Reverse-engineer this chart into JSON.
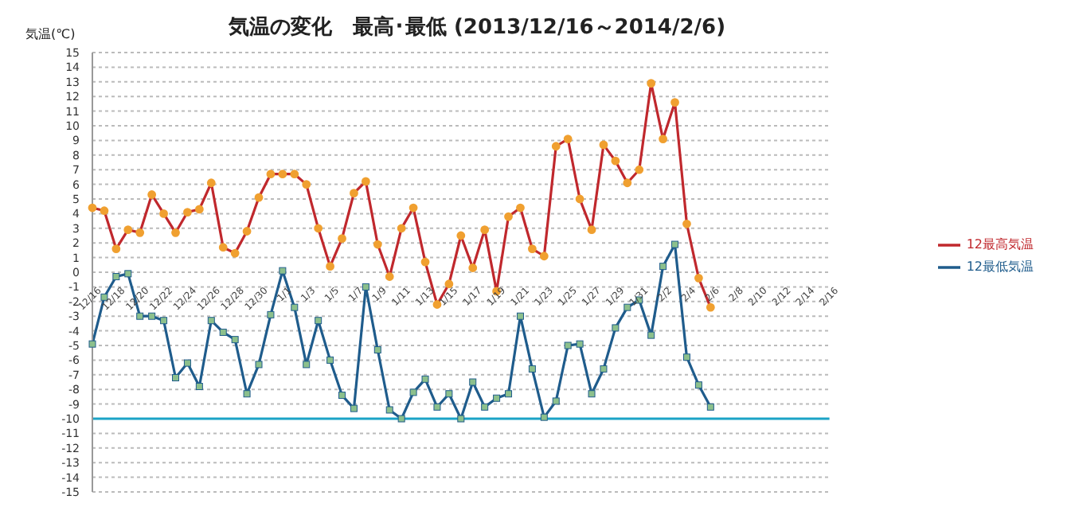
{
  "chart_data": {
    "type": "line",
    "title": "気温の変化　最高･最低 (2013/12/16～2014/2/6)",
    "ylabel": "気温(℃)",
    "categories": [
      "12/16",
      null,
      "12/18",
      null,
      "12/20",
      null,
      "12/22",
      null,
      "12/24",
      null,
      "12/26",
      null,
      "12/28",
      null,
      "12/30",
      null,
      "1/1",
      null,
      "1/3",
      null,
      "1/5",
      null,
      "1/7",
      null,
      "1/9",
      null,
      "1/11",
      null,
      "1/13",
      null,
      "1/15",
      null,
      "1/17",
      null,
      "1/19",
      null,
      "1/21",
      null,
      "1/23",
      null,
      "1/25",
      null,
      "1/27",
      null,
      "1/29",
      null,
      "1/31",
      null,
      "2/2",
      null,
      "2/4",
      null,
      "2/6",
      null,
      "2/8",
      null,
      "2/10",
      null,
      "2/12",
      null,
      "2/14",
      null,
      "2/16"
    ],
    "series": [
      {
        "name": "12最高気温",
        "color": "#c0282d",
        "marker": "circle",
        "values": [
          4.4,
          4.2,
          1.6,
          2.9,
          2.7,
          5.3,
          4.0,
          2.7,
          4.1,
          4.3,
          6.1,
          1.7,
          1.3,
          2.8,
          5.1,
          6.7,
          6.7,
          6.7,
          6.0,
          3.0,
          0.4,
          2.3,
          5.4,
          6.2,
          1.9,
          -0.3,
          3.0,
          4.4,
          0.7,
          -2.2,
          -0.8,
          2.5,
          0.3,
          2.9,
          -1.3,
          3.8,
          4.4,
          1.6,
          1.1,
          8.6,
          9.1,
          5.0,
          2.9,
          8.7,
          7.6,
          6.1,
          7.0,
          12.9,
          9.1,
          11.6,
          3.3,
          -0.4,
          -2.4,
          null,
          null,
          null,
          null,
          null,
          null,
          null,
          null,
          null,
          null
        ]
      },
      {
        "name": "12最低気温",
        "color": "#1f5c8c",
        "marker": "square",
        "values": [
          -4.9,
          -1.7,
          -0.3,
          -0.1,
          -3.0,
          -3.0,
          -3.3,
          -7.2,
          -6.2,
          -7.8,
          -3.3,
          -4.1,
          -4.6,
          -8.3,
          -6.3,
          -2.9,
          0.1,
          -2.4,
          -6.3,
          -3.3,
          -6.0,
          -8.4,
          -9.3,
          -1.0,
          -5.3,
          -9.4,
          -10.0,
          -8.2,
          -7.3,
          -9.2,
          -8.3,
          -10.0,
          -7.5,
          -9.2,
          -8.6,
          -8.3,
          -3.0,
          -6.6,
          -9.9,
          -8.8,
          -5.0,
          -4.9,
          -8.3,
          -6.6,
          -3.8,
          -2.4,
          -1.9,
          -4.3,
          0.4,
          1.9,
          -5.8,
          -7.7,
          -9.2,
          null,
          null,
          null,
          null,
          null,
          null,
          null,
          null,
          null,
          null
        ]
      }
    ],
    "ylim": [
      -15,
      15
    ],
    "yticks": [
      -15,
      -14,
      -13,
      -12,
      -11,
      -10,
      -9,
      -8,
      -7,
      -6,
      -5,
      -4,
      -3,
      -2,
      -1,
      0,
      1,
      2,
      3,
      4,
      5,
      6,
      7,
      8,
      9,
      10,
      11,
      12,
      13,
      14,
      15
    ],
    "ref_lines": [
      {
        "axis": "y",
        "value": -10,
        "color": "#1ba3c6"
      }
    ],
    "grid": "y",
    "legend": "right"
  }
}
